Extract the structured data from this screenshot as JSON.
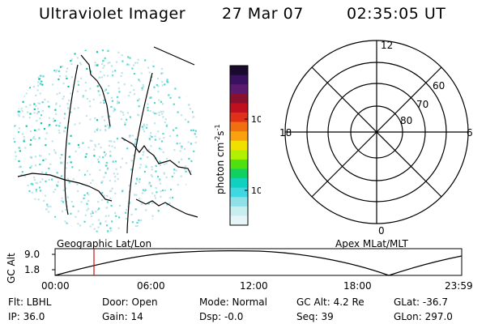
{
  "header": {
    "instrument": "Ultraviolet Imager",
    "date": "27 Mar 07",
    "time": "02:35:05 UT"
  },
  "colorbar": {
    "unit": "photon cm",
    "unit_exp1": "-2",
    "unit_s": "s",
    "unit_exp2": "-1",
    "ticks": [
      "100",
      "10"
    ],
    "colors": [
      "#1a0a2e",
      "#3a1060",
      "#5a1a70",
      "#8a1030",
      "#c01020",
      "#e03018",
      "#f07010",
      "#f8a010",
      "#f0e000",
      "#b0f000",
      "#50e010",
      "#10d060",
      "#10d0c0",
      "#40d8e0",
      "#90e0e8",
      "#c8eef0",
      "#e6f6f8"
    ]
  },
  "geo_map": {
    "label": "Geographic Lat/Lon",
    "colors": {
      "speckle_light": "#c0e4e8",
      "speckle_mid": "#58d8d0",
      "speckle_teal": "#10c8a8"
    }
  },
  "polar_plot": {
    "label": "Apex MLat/MLT",
    "mlt_labels": [
      "12",
      "18",
      "6",
      "0"
    ],
    "lat_labels": [
      "60",
      "70",
      "80"
    ]
  },
  "altitude_plot": {
    "ylabel": "GC Alt",
    "y_ticks": [
      "9.0",
      "1.8"
    ],
    "x_ticks": [
      "00:00",
      "06:00",
      "12:00",
      "18:00",
      "23:59"
    ],
    "marker_color": "#d01010"
  },
  "status": {
    "row1": [
      {
        "key": "flt",
        "text": "Flt: LBHL"
      },
      {
        "key": "door",
        "text": "Door: Open"
      },
      {
        "key": "mode",
        "text": "Mode: Normal"
      },
      {
        "key": "gcalt",
        "text": "GC Alt: 4.2 Re"
      },
      {
        "key": "glat",
        "text": "GLat: -36.7"
      }
    ],
    "row2": [
      {
        "key": "ip",
        "text": "IP: 36.0"
      },
      {
        "key": "gain",
        "text": "Gain: 14"
      },
      {
        "key": "dsp",
        "text": "Dsp:   -0.0"
      },
      {
        "key": "seq",
        "text": "Seq: 39"
      },
      {
        "key": "glon",
        "text": "GLon: 297.0"
      }
    ]
  }
}
